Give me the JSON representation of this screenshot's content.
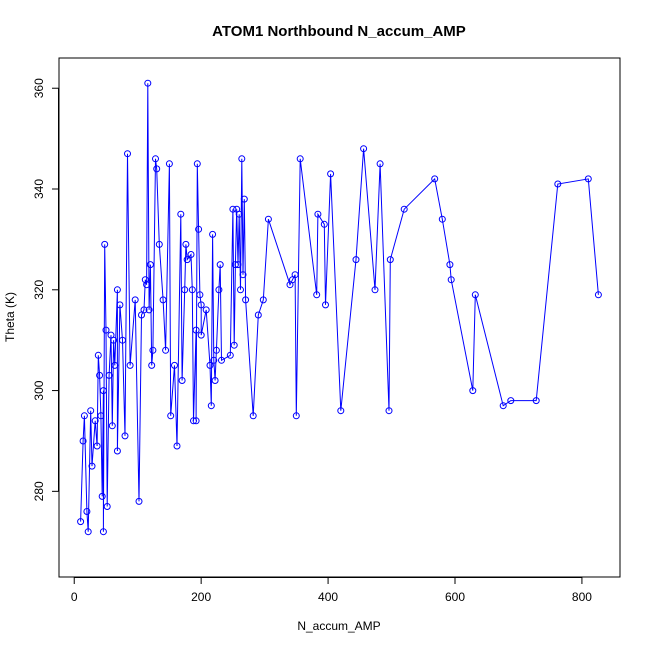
{
  "chart_data": {
    "type": "scatter",
    "title": "ATOM1 Northbound N_accum_AMP",
    "xlabel": "N_accum_AMP",
    "ylabel": "Theta (K)",
    "xlim": [
      -24,
      860
    ],
    "ylim": [
      263,
      366
    ],
    "x_ticks": [
      0,
      200,
      400,
      600,
      800
    ],
    "x_tick_labels": [
      "0",
      "200",
      "400",
      "600",
      "800"
    ],
    "y_ticks": [
      280,
      300,
      320,
      340,
      360
    ],
    "y_tick_labels": [
      "280",
      "300",
      "320",
      "340",
      "360"
    ],
    "grid": false,
    "legend": "none",
    "color": "#0000ff",
    "marker": "open-circle",
    "connected": true,
    "points": [
      [
        10,
        274
      ],
      [
        14,
        290
      ],
      [
        16,
        295
      ],
      [
        20,
        276
      ],
      [
        22,
        272
      ],
      [
        26,
        296
      ],
      [
        28,
        285
      ],
      [
        33,
        294
      ],
      [
        36,
        289
      ],
      [
        38,
        307
      ],
      [
        40,
        303
      ],
      [
        42,
        295
      ],
      [
        44,
        279
      ],
      [
        46,
        300
      ],
      [
        46,
        272
      ],
      [
        48,
        329
      ],
      [
        50,
        312
      ],
      [
        52,
        277
      ],
      [
        55,
        303
      ],
      [
        58,
        311
      ],
      [
        60,
        293
      ],
      [
        62,
        310
      ],
      [
        64,
        305
      ],
      [
        68,
        320
      ],
      [
        68,
        288
      ],
      [
        72,
        317
      ],
      [
        76,
        310
      ],
      [
        80,
        291
      ],
      [
        84,
        347
      ],
      [
        88,
        305
      ],
      [
        96,
        318
      ],
      [
        102,
        278
      ],
      [
        106,
        315
      ],
      [
        110,
        316
      ],
      [
        112,
        322
      ],
      [
        114,
        321
      ],
      [
        116,
        361
      ],
      [
        118,
        316
      ],
      [
        120,
        325
      ],
      [
        122,
        305
      ],
      [
        124,
        308
      ],
      [
        128,
        346
      ],
      [
        130,
        344
      ],
      [
        134,
        329
      ],
      [
        140,
        318
      ],
      [
        144,
        308
      ],
      [
        150,
        345
      ],
      [
        152,
        295
      ],
      [
        158,
        305
      ],
      [
        162,
        289
      ],
      [
        168,
        335
      ],
      [
        170,
        302
      ],
      [
        174,
        320
      ],
      [
        176,
        329
      ],
      [
        178,
        326
      ],
      [
        184,
        327
      ],
      [
        186,
        320
      ],
      [
        188,
        294
      ],
      [
        192,
        312
      ],
      [
        192,
        294
      ],
      [
        194,
        345
      ],
      [
        196,
        332
      ],
      [
        198,
        319
      ],
      [
        200,
        317
      ],
      [
        200,
        311
      ],
      [
        208,
        316
      ],
      [
        214,
        305
      ],
      [
        216,
        297
      ],
      [
        218,
        331
      ],
      [
        220,
        306
      ],
      [
        222,
        302
      ],
      [
        224,
        308
      ],
      [
        228,
        320
      ],
      [
        230,
        325
      ],
      [
        232,
        306
      ],
      [
        246,
        307
      ],
      [
        250,
        336
      ],
      [
        252,
        309
      ],
      [
        254,
        325
      ],
      [
        256,
        336
      ],
      [
        258,
        325
      ],
      [
        260,
        335
      ],
      [
        262,
        320
      ],
      [
        264,
        346
      ],
      [
        266,
        323
      ],
      [
        268,
        338
      ],
      [
        270,
        318
      ],
      [
        282,
        295
      ],
      [
        290,
        315
      ],
      [
        298,
        318
      ],
      [
        306,
        334
      ],
      [
        340,
        321
      ],
      [
        344,
        322
      ],
      [
        348,
        323
      ],
      [
        350,
        295
      ],
      [
        356,
        346
      ],
      [
        382,
        319
      ],
      [
        384,
        335
      ],
      [
        394,
        333
      ],
      [
        396,
        317
      ],
      [
        404,
        343
      ],
      [
        420,
        296
      ],
      [
        444,
        326
      ],
      [
        456,
        348
      ],
      [
        474,
        320
      ],
      [
        482,
        345
      ],
      [
        496,
        296
      ],
      [
        498,
        326
      ],
      [
        520,
        336
      ],
      [
        568,
        342
      ],
      [
        580,
        334
      ],
      [
        592,
        325
      ],
      [
        594,
        322
      ],
      [
        628,
        300
      ],
      [
        632,
        319
      ],
      [
        676,
        297
      ],
      [
        688,
        298
      ],
      [
        728,
        298
      ],
      [
        762,
        341
      ],
      [
        810,
        342
      ],
      [
        826,
        319
      ]
    ]
  }
}
